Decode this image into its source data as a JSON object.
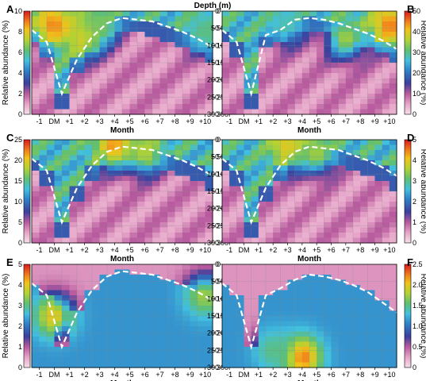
{
  "figure": {
    "top_label": "Depth (m)",
    "x_label": "Month",
    "y_label": "Relative abundance (%)"
  },
  "chart_data": [
    {
      "type": "heatmap",
      "panel_label": "A",
      "side": "left",
      "cbar_max": 10,
      "cbar_ticks": [
        0,
        2,
        4,
        6,
        8,
        10
      ],
      "x_categories": [
        "-1",
        "DM",
        "+1",
        "+2",
        "+3",
        "+4",
        "+5",
        "+6",
        "+7",
        "+8",
        "+9",
        "+10"
      ],
      "depth_ticks": [
        0,
        50,
        100,
        150,
        200,
        250,
        300
      ],
      "depth_range": [
        0,
        300
      ],
      "mixed_layer_depth_m": [
        55,
        90,
        240,
        140,
        75,
        35,
        20,
        25,
        30,
        45,
        60,
        80,
        105
      ],
      "hotspots": [
        {
          "month": "DM",
          "depth_m": 40,
          "pct": 9
        },
        {
          "month": "+2",
          "depth_m": 70,
          "pct": 8
        },
        {
          "month": "+3",
          "depth_m": 40,
          "pct": 6.5
        },
        {
          "month": "+10",
          "depth_m": 60,
          "pct": 6
        }
      ]
    },
    {
      "type": "heatmap",
      "panel_label": "B",
      "side": "right",
      "cbar_max": 50,
      "cbar_ticks": [
        0,
        10,
        20,
        30,
        40,
        50
      ],
      "x_categories": [
        "-1",
        "DM",
        "+1",
        "+2",
        "+3",
        "+4",
        "+5",
        "+6",
        "+7",
        "+8",
        "+9",
        "+10"
      ],
      "depth_ticks": [
        0,
        50,
        100,
        150,
        200,
        250,
        300
      ],
      "depth_range": [
        0,
        300
      ],
      "mixed_layer_depth_m": [
        55,
        90,
        240,
        70,
        55,
        25,
        20,
        25,
        35,
        50,
        65,
        85,
        110
      ],
      "hotspots": [
        {
          "month": "+7",
          "depth_m": 80,
          "pct": 35
        },
        {
          "month": "+10",
          "depth_m": 40,
          "pct": 45
        },
        {
          "month": "+3",
          "depth_m": 40,
          "pct": 28
        }
      ]
    },
    {
      "type": "heatmap",
      "panel_label": "C",
      "side": "left",
      "cbar_max": 25,
      "cbar_ticks": [
        0,
        5,
        10,
        15,
        20,
        25
      ],
      "x_categories": [
        "-1",
        "DM",
        "+1",
        "+2",
        "+3",
        "+4",
        "+5",
        "+6",
        "+7",
        "+8",
        "+9",
        "+10"
      ],
      "depth_ticks": [
        0,
        50,
        100,
        150,
        200,
        250,
        300
      ],
      "depth_range": [
        0,
        300
      ],
      "mixed_layer_depth_m": [
        55,
        90,
        240,
        140,
        75,
        35,
        20,
        25,
        30,
        45,
        60,
        80,
        105
      ],
      "hotspots": [
        {
          "month": "+4",
          "depth_m": 20,
          "pct": 22
        },
        {
          "month": "+6",
          "depth_m": 40,
          "pct": 18
        }
      ]
    },
    {
      "type": "heatmap",
      "panel_label": "D",
      "side": "right",
      "cbar_max": 5,
      "cbar_ticks": [
        0,
        1,
        2,
        3,
        4,
        5
      ],
      "x_categories": [
        "-1",
        "DM",
        "+1",
        "+2",
        "+3",
        "+4",
        "+5",
        "+6",
        "+7",
        "+8",
        "+9",
        "+10"
      ],
      "depth_ticks": [
        0,
        50,
        100,
        150,
        200,
        250,
        300
      ],
      "depth_range": [
        0,
        300
      ],
      "mixed_layer_depth_m": [
        55,
        90,
        240,
        140,
        75,
        35,
        20,
        25,
        30,
        45,
        60,
        80,
        105
      ],
      "hotspots": [
        {
          "month": "+3",
          "depth_m": 20,
          "pct": 4
        },
        {
          "month": "+5",
          "depth_m": 40,
          "pct": 3.5
        }
      ]
    },
    {
      "type": "heatmap",
      "panel_label": "E",
      "side": "left",
      "cbar_max": 5,
      "cbar_ticks": [
        0,
        1,
        2,
        3,
        4,
        5
      ],
      "x_categories": [
        "-1",
        "DM",
        "+1",
        "+2",
        "+3",
        "+4",
        "+5",
        "+6",
        "+7",
        "+8",
        "+9",
        "+10"
      ],
      "depth_ticks": [
        0,
        50,
        100,
        150,
        200,
        250,
        300
      ],
      "depth_range": [
        0,
        300
      ],
      "mixed_layer_depth_m": [
        55,
        90,
        240,
        140,
        75,
        35,
        20,
        25,
        30,
        45,
        60,
        80,
        105
      ],
      "hotspots": [
        {
          "month": "DM",
          "depth_m": 150,
          "pct": 4
        },
        {
          "month": "+10",
          "depth_m": 90,
          "pct": 3.5
        }
      ]
    },
    {
      "type": "heatmap",
      "panel_label": "F",
      "side": "right",
      "cbar_max": 2.5,
      "cbar_ticks": [
        0,
        0.5,
        1.0,
        1.5,
        2.0,
        2.5
      ],
      "x_categories": [
        "-1",
        "DM",
        "+1",
        "+2",
        "+3",
        "+4",
        "+5",
        "+6",
        "+7",
        "+8",
        "+9",
        "+10"
      ],
      "depth_ticks": [
        0,
        50,
        100,
        150,
        200,
        250,
        300
      ],
      "depth_range": [
        0,
        300
      ],
      "mixed_layer_depth_m": [
        55,
        90,
        240,
        90,
        70,
        45,
        30,
        35,
        45,
        60,
        80,
        110,
        140
      ],
      "hotspots": [
        {
          "month": "+4",
          "depth_m": 270,
          "pct": 2.3
        },
        {
          "month": "+2",
          "depth_m": 250,
          "pct": 1.5
        }
      ]
    }
  ]
}
